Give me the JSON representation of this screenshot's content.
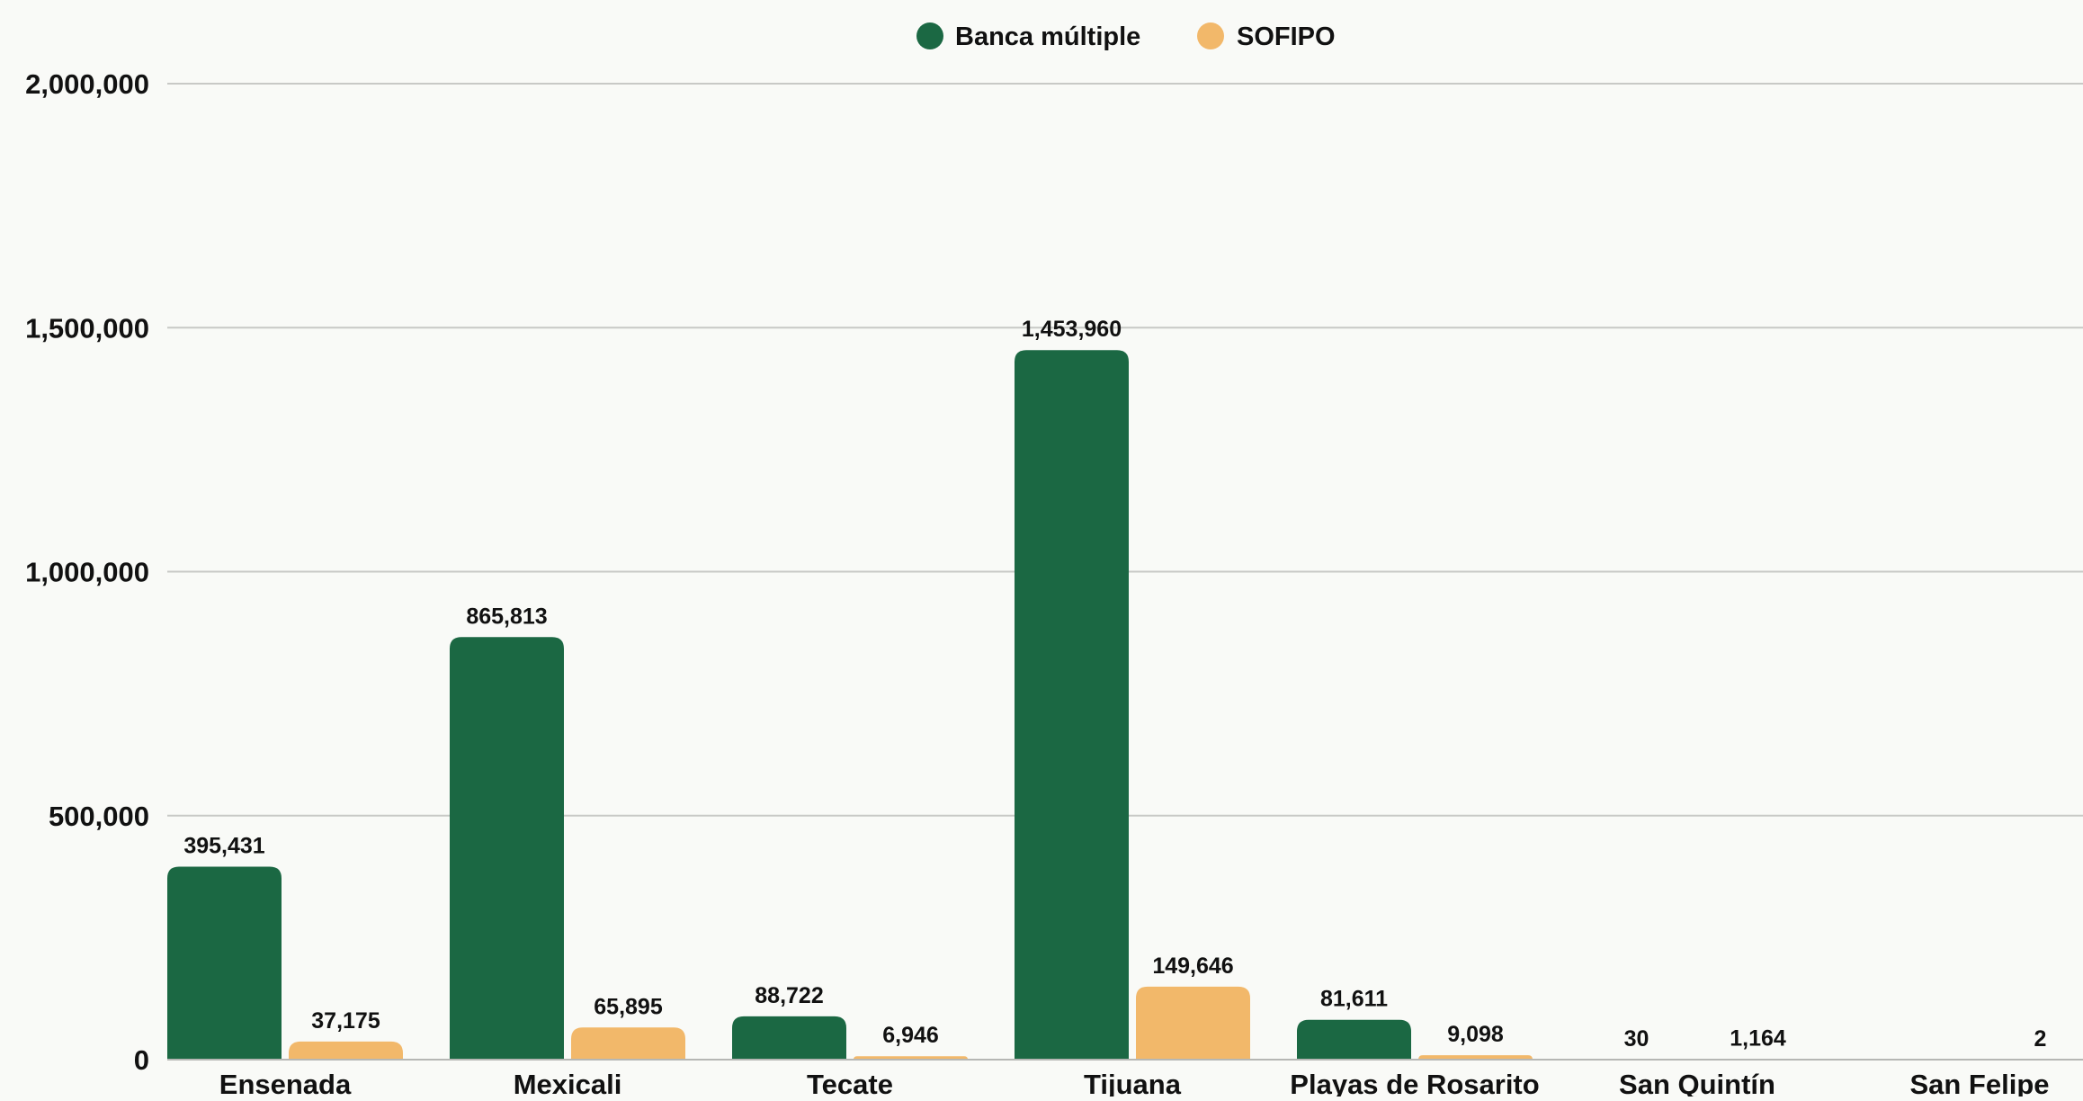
{
  "colors": {
    "background": "#f9faf7",
    "banca": "#1b6843",
    "sofipo": "#f2b86a",
    "grid": "#c8c9c6"
  },
  "chart_data": {
    "type": "bar",
    "title": "",
    "xlabel": "",
    "ylabel": "",
    "categories": [
      "Ensenada",
      "Mexicali",
      "Tecate",
      "Tijuana",
      "Playas de Rosarito",
      "San Quintín",
      "San Felipe"
    ],
    "series": [
      {
        "name": "Banca múltiple",
        "color": "#1b6843",
        "values": [
          395431,
          865813,
          88722,
          1453960,
          81611,
          30,
          null
        ],
        "labels": [
          "395,431",
          "865,813",
          "88,722",
          "1,453,960",
          "81,611",
          "30",
          ""
        ]
      },
      {
        "name": "SOFIPO",
        "color": "#f2b86a",
        "values": [
          37175,
          65895,
          6946,
          149646,
          9098,
          1164,
          2
        ],
        "labels": [
          "37,175",
          "65,895",
          "6,946",
          "149,646",
          "9,098",
          "1,164",
          "2"
        ]
      }
    ],
    "ylim": [
      0,
      2000000
    ],
    "yticks": [
      0,
      500000,
      1000000,
      1500000,
      2000000
    ],
    "ytick_labels": [
      "0",
      "500,000",
      "1,000,000",
      "1,500,000",
      "2,000,000"
    ],
    "grid": true,
    "legend_position": "top-center"
  }
}
